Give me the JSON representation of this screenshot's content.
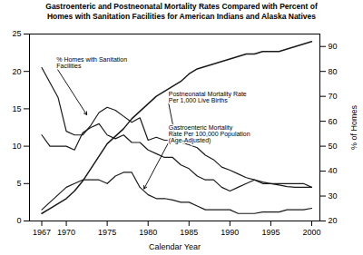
{
  "chart_data": {
    "type": "line",
    "title": "Gastroenteric and Postneonatal Mortality Rates Compared with Percent of\nHomes with Sanitation Facilities for American Indians and Alaska Natives",
    "xlabel": "Calendar Year",
    "y2label": "% of Homes",
    "xlim": [
      1965.5,
      2001
    ],
    "xticks": [
      1967,
      1970,
      1975,
      1980,
      1985,
      1990,
      1995,
      2000
    ],
    "ylim": [
      0,
      25
    ],
    "yticks": [
      0,
      5,
      10,
      15,
      20,
      25
    ],
    "y2lim": [
      20,
      95
    ],
    "y2ticks": [
      20,
      30,
      40,
      50,
      60,
      70,
      80,
      90
    ],
    "x": [
      1967,
      1968,
      1969,
      1970,
      1971,
      1972,
      1973,
      1974,
      1975,
      1976,
      1977,
      1978,
      1979,
      1980,
      1981,
      1982,
      1983,
      1984,
      1985,
      1986,
      1987,
      1988,
      1989,
      1990,
      1991,
      1992,
      1993,
      1994,
      1995,
      1996,
      1997,
      1998,
      1999,
      2000
    ],
    "series": [
      {
        "color": "#1a1a1a",
        "axis": "y2",
        "values": [
          23,
          25,
          27,
          29,
          32,
          36,
          41,
          46,
          51,
          54,
          57,
          61,
          64,
          67,
          70,
          72,
          74,
          76,
          79,
          81,
          82,
          83,
          84,
          85,
          86,
          87,
          87,
          88,
          88,
          88,
          89,
          90,
          91,
          92
        ]
      },
      {
        "color": "#1a1a1a",
        "values": [
          20.5,
          18.5,
          16.5,
          12.0,
          11.5,
          11.5,
          12.8,
          14.5,
          15.2,
          14.8,
          14.0,
          13.2,
          13.8,
          10.8,
          11.2,
          10.8,
          10.8,
          10.5,
          10.2,
          9.8,
          8.8,
          8.2,
          7.2,
          6.8,
          6.3,
          5.8,
          5.5,
          5.2,
          5.0,
          4.8,
          4.6,
          4.5,
          4.5,
          4.5
        ]
      },
      {
        "color": "#1a1a1a",
        "values": [
          11.5,
          10.0,
          10.0,
          10.0,
          9.5,
          11.8,
          12.5,
          13.0,
          11.5,
          11.0,
          11.5,
          10.5,
          10.5,
          9.5,
          9.0,
          8.5,
          8.5,
          7.5,
          7.0,
          6.0,
          5.5,
          5.5,
          4.5,
          4.0,
          4.5,
          5.0,
          5.5,
          5.0,
          5.0,
          5.0,
          5.0,
          5.0,
          5.0,
          4.5
        ]
      },
      {
        "color": "#1a1a1a",
        "values": [
          1.5,
          2.5,
          3.5,
          4.5,
          5.0,
          5.5,
          5.5,
          5.5,
          5.0,
          6.0,
          6.5,
          6.5,
          4.5,
          3.5,
          3.0,
          3.0,
          2.8,
          2.5,
          2.5,
          2.0,
          1.5,
          1.5,
          1.5,
          1.5,
          1.0,
          1.0,
          1.0,
          1.2,
          1.2,
          1.2,
          1.5,
          1.5,
          1.5,
          1.7
        ]
      }
    ],
    "annotations": [
      {
        "text": "% Homes with Sanitation\nFacilities",
        "x": 1972.5,
        "y": 14.2,
        "text_x": 1968.8,
        "text_y": 20.5
      },
      {
        "text": "Postneonatal Mortality Rate\nPer 1,000 Live Births",
        "x": 1983.5,
        "y": 10.2,
        "text_x": 1982.5,
        "text_y": 15.8
      },
      {
        "text": "Gastroenteric Mortality\nRate Per 100,000 Population\n(Age-Adjusted)",
        "x": 1979.5,
        "y": 4.3,
        "text_x": 1982.5,
        "text_y": 10.5
      }
    ]
  }
}
